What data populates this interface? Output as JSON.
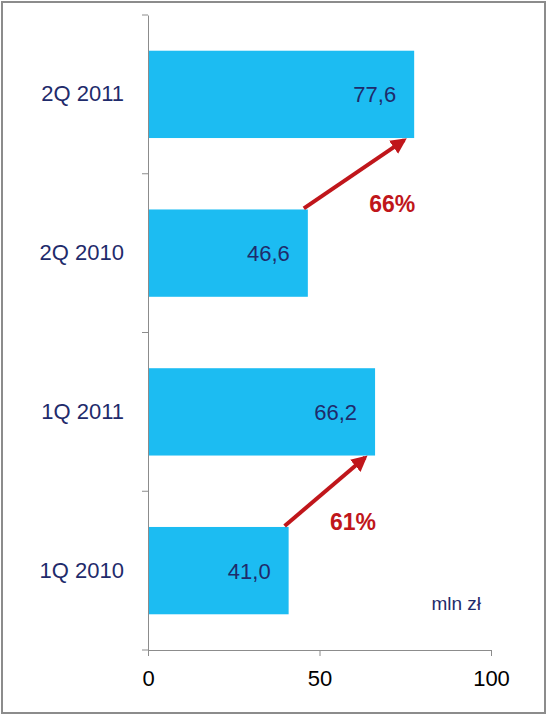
{
  "chart_data": {
    "type": "bar",
    "orientation": "horizontal",
    "categories": [
      "2Q 2011",
      "2Q 2010",
      "1Q 2011",
      "1Q 2010"
    ],
    "values": [
      77.6,
      46.6,
      66.2,
      41.0
    ],
    "value_labels": [
      "77,6",
      "46,6",
      "66,2",
      "41,0"
    ],
    "data_labels": true,
    "color": "#1cbcf2",
    "xlim": [
      0,
      100
    ],
    "xticks": [
      0,
      50,
      100
    ],
    "x_label": "mln zł",
    "annotations": [
      "66%",
      "61%"
    ],
    "grid": false
  }
}
